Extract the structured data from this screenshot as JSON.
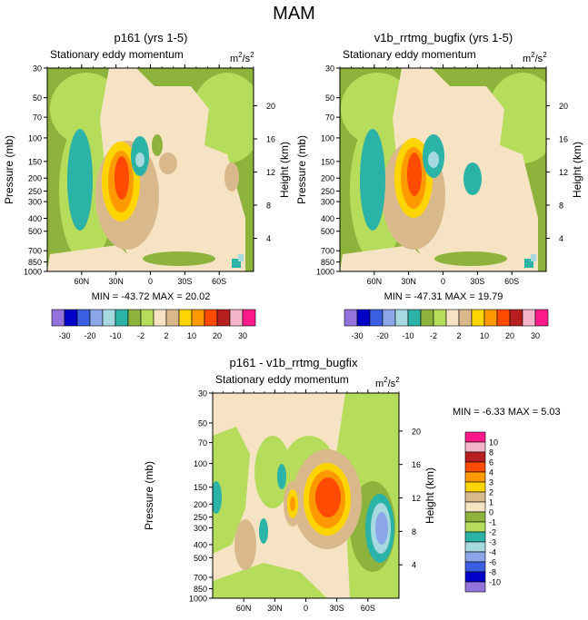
{
  "page_title": "MAM",
  "colors": {
    "land_green": "#8db33c",
    "light_green": "#b6dc5c",
    "tan": "#d9b98c",
    "cream": "#f5e3c3",
    "teal": "#2ab3a6",
    "light_teal": "#a7d9e0",
    "yellow": "#ffd500",
    "orange": "#ff9900",
    "red_orange": "#ff4b00",
    "blue_light": "#8aa6e8",
    "blue": "#3c5ee0",
    "navy": "#0000c8",
    "purple": "#9474dc",
    "dark_red": "#b51f1f",
    "pink": "#f5b5c8",
    "magenta": "#ff1a8c"
  },
  "chart_data": [
    {
      "type": "heatmap",
      "title": "p161 (yrs 1-5)",
      "subtitle": "Stationary eddy momentum",
      "units_html": "m2/s2",
      "units_base": "m",
      "units_exp": "2",
      "units_div": "/s",
      "units_exp2": "2",
      "ylabel": "Pressure (mb)",
      "ylabel_right": "Height (km)",
      "yticks_pressure": [
        "30",
        "50",
        "70",
        "100",
        "150",
        "200",
        "250",
        "300",
        "400",
        "500",
        "700",
        "850",
        "1000"
      ],
      "yticks_height": [
        "20",
        "16",
        "12",
        "8",
        "4"
      ],
      "xticks": [
        "60N",
        "30N",
        "0",
        "30S",
        "60S"
      ],
      "stats": "MIN = -43.72   MAX =  20.02",
      "min": -43.72,
      "max": 20.02
    },
    {
      "type": "heatmap",
      "title": "v1b_rrtmg_bugfix (yrs 1-5)",
      "subtitle": "Stationary eddy momentum",
      "ylabel": "Pressure (mb)",
      "ylabel_right": "Height (km)",
      "yticks_pressure": [
        "30",
        "50",
        "70",
        "100",
        "150",
        "200",
        "250",
        "300",
        "400",
        "500",
        "700",
        "850",
        "1000"
      ],
      "yticks_height": [
        "20",
        "16",
        "12",
        "8",
        "4"
      ],
      "xticks": [
        "60N",
        "30N",
        "0",
        "30S",
        "60S"
      ],
      "stats": "MIN = -47.31   MAX =  19.79",
      "min": -47.31,
      "max": 19.79
    },
    {
      "type": "heatmap",
      "title": "p161 - v1b_rrtmg_bugfix",
      "subtitle": "Stationary eddy momentum",
      "ylabel": "Pressure (mb)",
      "ylabel_right": "Height (km)",
      "yticks_pressure": [
        "30",
        "50",
        "70",
        "100",
        "150",
        "200",
        "250",
        "300",
        "400",
        "500",
        "700",
        "850",
        "1000"
      ],
      "yticks_height": [
        "20",
        "16",
        "12",
        "8",
        "4"
      ],
      "xticks": [
        "60N",
        "30N",
        "0",
        "30S",
        "60S"
      ],
      "stats": "MIN =  -6.33   MAX =   5.03",
      "min": -6.33,
      "max": 5.03
    }
  ],
  "colorbar_top": {
    "labels": [
      "-30",
      "-20",
      "-10",
      "-2",
      "2",
      "10",
      "20",
      "30"
    ],
    "colors": [
      "#9474dc",
      "#0000c8",
      "#3c5ee0",
      "#8aa6e8",
      "#a7d9e0",
      "#2ab3a6",
      "#8db33c",
      "#b6dc5c",
      "#f5e3c3",
      "#d9b98c",
      "#ffd500",
      "#ff9900",
      "#ff4b00",
      "#b51f1f",
      "#f5b5c8",
      "#ff1a8c"
    ]
  },
  "colorbar_diff": {
    "labels": [
      "10",
      "8",
      "6",
      "4",
      "3",
      "2",
      "1",
      "0",
      "-1",
      "-2",
      "-3",
      "-4",
      "-6",
      "-8",
      "-10"
    ],
    "colors": [
      "#ff1a8c",
      "#f5b5c8",
      "#b51f1f",
      "#ff4b00",
      "#ff9900",
      "#ffd500",
      "#d9b98c",
      "#f5e3c3",
      "#8db33c",
      "#b6dc5c",
      "#2ab3a6",
      "#a7d9e0",
      "#8aa6e8",
      "#3c5ee0",
      "#0000c8",
      "#9474dc"
    ]
  }
}
